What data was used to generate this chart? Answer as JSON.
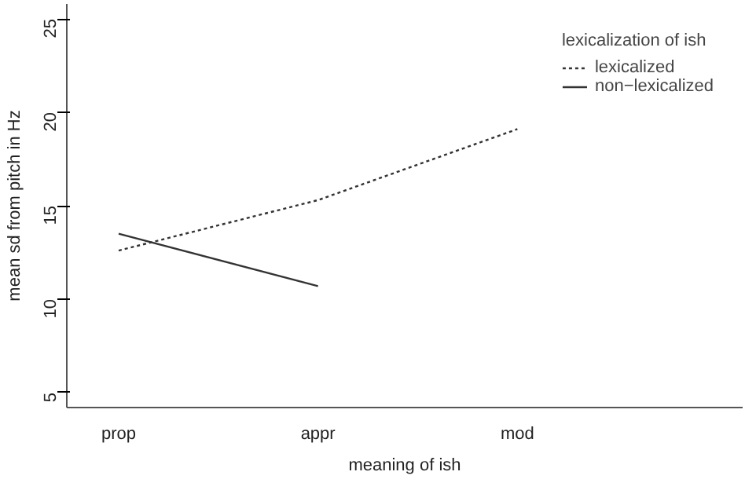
{
  "chart_data": {
    "type": "line",
    "xlabel": "meaning of ish",
    "ylabel": "mean sd from pitch in Hz",
    "legend_title": "lexicalization of ish",
    "legend": "top right",
    "grid": false,
    "marker": "none",
    "categories": [
      "prop",
      "appr",
      "mod"
    ],
    "ylim": [
      4.2,
      25.8
    ],
    "yticks": [
      5,
      10,
      15,
      20,
      25
    ],
    "series": [
      {
        "name": "lexicalized",
        "color": "#333333",
        "line_style": "dotted",
        "values": [
          12.6,
          15.3,
          19.1
        ]
      },
      {
        "name": "non−lexicalized",
        "color": "#333333",
        "line_style": "solid",
        "values": [
          13.5,
          10.7,
          null
        ]
      }
    ]
  }
}
